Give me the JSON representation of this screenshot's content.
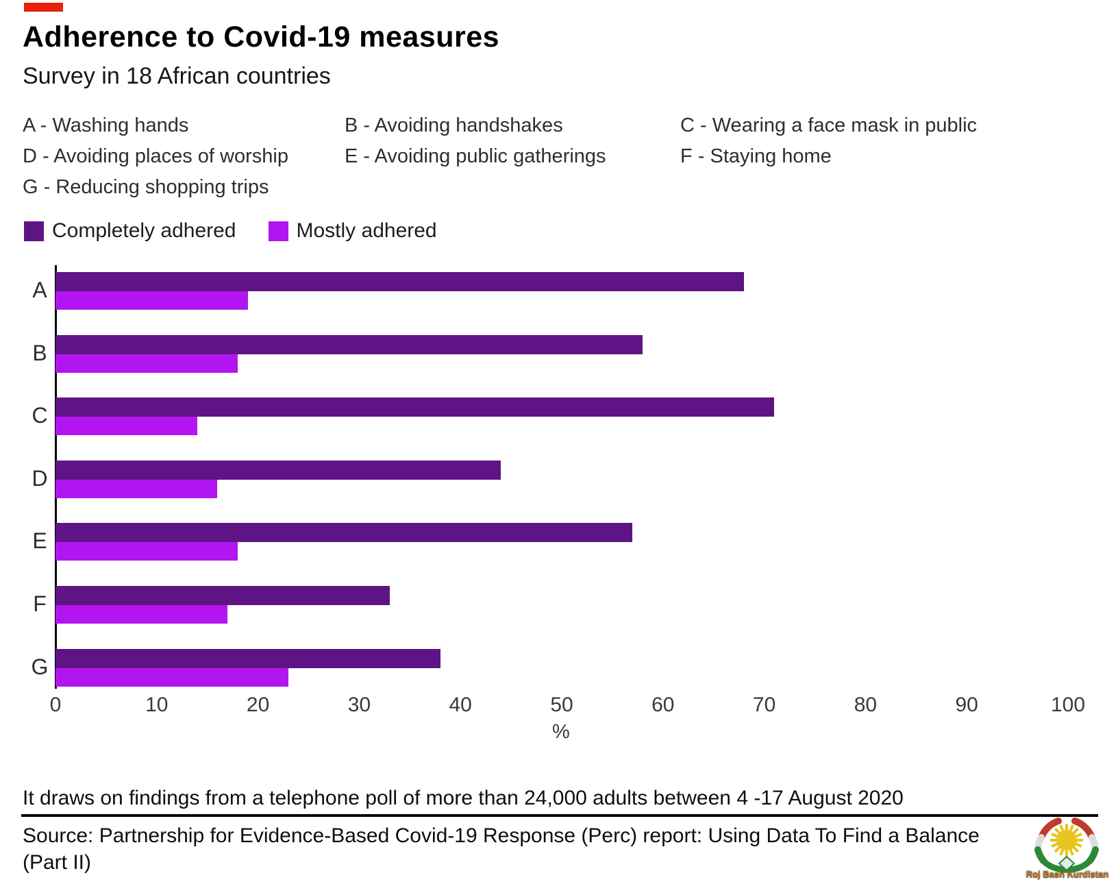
{
  "header": {
    "title": "Adherence to Covid-19 measures",
    "subtitle": "Survey in 18 African countries"
  },
  "key": {
    "items": [
      "A - Washing hands",
      "B - Avoiding handshakes",
      "C - Wearing a face mask in public",
      "D - Avoiding places of worship",
      "E - Avoiding public gatherings",
      "F - Staying home",
      "G - Reducing shopping trips"
    ]
  },
  "legend": {
    "series": [
      {
        "label": "Completely adhered",
        "color": "#5f1486"
      },
      {
        "label": "Mostly adhered",
        "color": "#b315f0"
      }
    ]
  },
  "chart_data": {
    "type": "bar",
    "orientation": "horizontal",
    "categories": [
      "A",
      "B",
      "C",
      "D",
      "E",
      "F",
      "G"
    ],
    "series": [
      {
        "name": "Completely adhered",
        "color": "#5f1486",
        "values": [
          68,
          58,
          71,
          44,
          57,
          33,
          38
        ]
      },
      {
        "name": "Mostly adhered",
        "color": "#b315f0",
        "values": [
          19,
          18,
          14,
          16,
          18,
          17,
          23
        ]
      }
    ],
    "xlabel": "%",
    "xlim": [
      0,
      100
    ],
    "xticks": [
      0,
      10,
      20,
      30,
      40,
      50,
      60,
      70,
      80,
      90,
      100
    ],
    "grid": false,
    "legend_position": "top"
  },
  "footer": {
    "note": "It draws on findings from a telephone poll of more than 24,000 adults between 4 -17 August 2020",
    "source": "Source: Partnership for Evidence-Based Covid-19 Response (Perc) report: Using Data To Find a Balance (Part II)"
  },
  "watermark": {
    "text": "Roj Bash Kurdistan"
  },
  "colors": {
    "red_mark": "#e8200e",
    "axis": "#000000"
  }
}
